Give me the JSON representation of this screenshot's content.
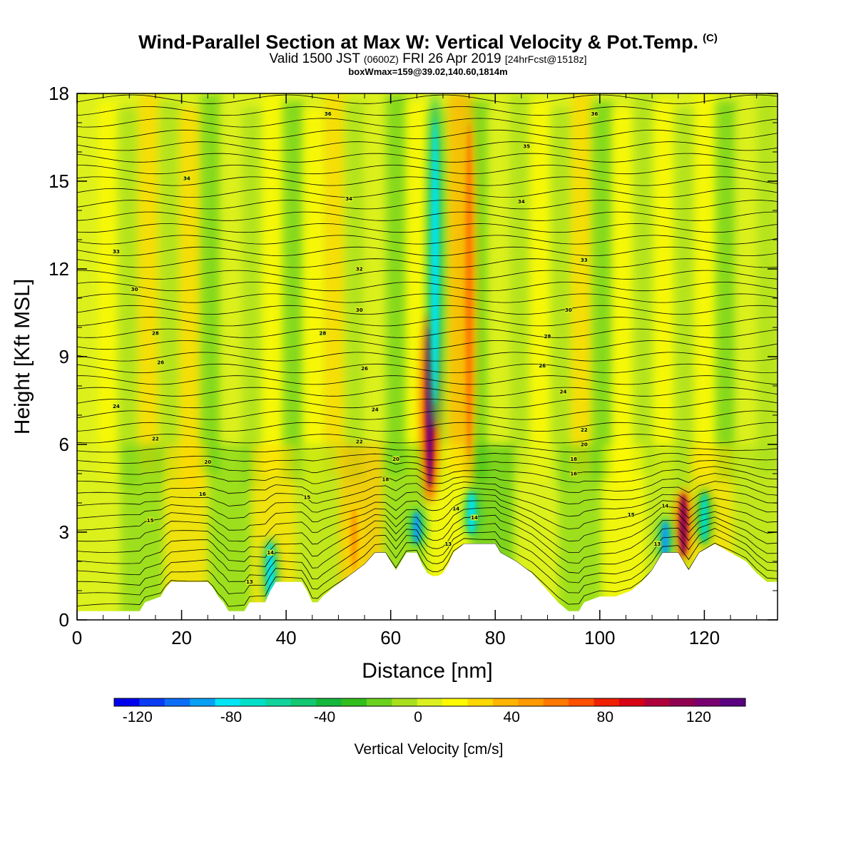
{
  "title": {
    "main": "Wind-Parallel Section at Max W: Vertical Velocity & Pot.Temp.",
    "copyright": "(C)",
    "valid_prefix": "Valid 1500 JST",
    "valid_utc": "(0600Z)",
    "valid_date": "FRI 26 Apr 2019",
    "forecast": "[24hrFcst@1518z]",
    "box_info": "boxWmax=159@39.02,140.60,1814m"
  },
  "chart_data": {
    "type": "heatmap",
    "xlabel": "Distance [nm]",
    "ylabel": "Height [Kft MSL]",
    "xlim": [
      0,
      134
    ],
    "ylim": [
      0,
      18
    ],
    "x_ticks": [
      0,
      20,
      40,
      60,
      80,
      100,
      120
    ],
    "y_ticks": [
      0,
      3,
      6,
      9,
      12,
      15,
      18
    ],
    "colorbar": {
      "title": "Vertical Velocity [cm/s]",
      "ticks": [
        -120,
        -80,
        -40,
        0,
        40,
        80,
        120
      ],
      "range": [
        -130,
        140
      ],
      "colors": [
        "#0000ee",
        "#0a3cf5",
        "#0c6ef7",
        "#08a0f5",
        "#00e6f5",
        "#00e0c8",
        "#10d49c",
        "#12c870",
        "#14b83c",
        "#32be1e",
        "#6ad21e",
        "#a8e01e",
        "#dcf01e",
        "#fffa00",
        "#ffd800",
        "#ffb400",
        "#ff9a00",
        "#ff7800",
        "#ff5000",
        "#f02000",
        "#d80014",
        "#b0003c",
        "#900050",
        "#780070",
        "#5a0080"
      ]
    },
    "terrain_profile": [
      [
        0,
        0.3
      ],
      [
        12,
        0.3
      ],
      [
        13,
        0.6
      ],
      [
        16,
        0.8
      ],
      [
        17,
        1.1
      ],
      [
        18,
        1.3
      ],
      [
        25,
        1.3
      ],
      [
        26,
        1.1
      ],
      [
        27,
        0.8
      ],
      [
        28,
        0.6
      ],
      [
        29,
        0.3
      ],
      [
        32,
        0.3
      ],
      [
        33,
        0.6
      ],
      [
        36,
        0.6
      ],
      [
        37,
        1.0
      ],
      [
        38,
        1.3
      ],
      [
        43,
        1.3
      ],
      [
        44,
        1.0
      ],
      [
        45,
        0.6
      ],
      [
        46,
        0.6
      ],
      [
        47,
        0.8
      ],
      [
        49,
        1.1
      ],
      [
        52,
        1.5
      ],
      [
        55,
        1.9
      ],
      [
        57,
        2.3
      ],
      [
        59,
        2.3
      ],
      [
        60,
        2.0
      ],
      [
        61,
        1.7
      ],
      [
        62,
        2.0
      ],
      [
        63,
        2.3
      ],
      [
        65,
        2.3
      ],
      [
        66,
        1.9
      ],
      [
        67,
        1.6
      ],
      [
        68,
        1.5
      ],
      [
        69,
        1.5
      ],
      [
        70,
        1.6
      ],
      [
        71,
        1.9
      ],
      [
        72,
        2.3
      ],
      [
        74,
        2.6
      ],
      [
        80,
        2.6
      ],
      [
        81,
        2.3
      ],
      [
        84,
        2.0
      ],
      [
        87,
        1.6
      ],
      [
        90,
        1.0
      ],
      [
        92,
        0.6
      ],
      [
        94,
        0.3
      ],
      [
        96,
        0.3
      ],
      [
        97,
        0.6
      ],
      [
        100,
        0.8
      ],
      [
        103,
        0.8
      ],
      [
        106,
        1.0
      ],
      [
        108,
        1.3
      ],
      [
        110,
        1.7
      ],
      [
        111,
        2.0
      ],
      [
        112,
        2.3
      ],
      [
        115,
        2.3
      ],
      [
        116,
        2.0
      ],
      [
        117,
        1.7
      ],
      [
        118,
        2.0
      ],
      [
        119,
        2.3
      ],
      [
        122,
        2.6
      ],
      [
        125,
        2.3
      ],
      [
        128,
        2.0
      ],
      [
        130,
        1.6
      ],
      [
        132,
        1.3
      ],
      [
        134,
        1.3
      ]
    ],
    "velocity_features": [
      {
        "x": 67.5,
        "z_min": 4.0,
        "z_max": 10.5,
        "w": 125
      },
      {
        "x": 75.0,
        "z_min": 4.5,
        "z_max": 18.0,
        "w": 60
      },
      {
        "x": 68.5,
        "z_min": 6.5,
        "z_max": 18.0,
        "w": -80
      },
      {
        "x": 53.0,
        "z_min": 1.5,
        "z_max": 4.0,
        "w": 45
      },
      {
        "x": 37.0,
        "z_min": 0.5,
        "z_max": 2.8,
        "w": -80
      },
      {
        "x": 75.5,
        "z_min": 2.8,
        "z_max": 4.5,
        "w": -80
      },
      {
        "x": 116.0,
        "z_min": 2.0,
        "z_max": 4.5,
        "w": 110
      },
      {
        "x": 112.5,
        "z_min": 2.0,
        "z_max": 3.5,
        "w": -90
      },
      {
        "x": 120.0,
        "z_min": 2.5,
        "z_max": 4.5,
        "w": -70
      },
      {
        "x": 65.0,
        "z_min": 2.5,
        "z_max": 3.8,
        "w": -90
      }
    ],
    "theta_labels": [
      {
        "x": 48,
        "z": 17.3,
        "text": "36"
      },
      {
        "x": 99,
        "z": 17.3,
        "text": "36"
      },
      {
        "x": 86,
        "z": 16.2,
        "text": "35"
      },
      {
        "x": 21,
        "z": 15.1,
        "text": "34"
      },
      {
        "x": 52,
        "z": 14.4,
        "text": "34"
      },
      {
        "x": 85,
        "z": 14.3,
        "text": "34"
      },
      {
        "x": 7.5,
        "z": 12.6,
        "text": "33"
      },
      {
        "x": 54,
        "z": 12.0,
        "text": "32"
      },
      {
        "x": 97,
        "z": 12.3,
        "text": "33"
      },
      {
        "x": 11,
        "z": 11.3,
        "text": "30"
      },
      {
        "x": 54,
        "z": 10.6,
        "text": "30"
      },
      {
        "x": 94,
        "z": 10.6,
        "text": "30"
      },
      {
        "x": 15,
        "z": 9.8,
        "text": "28"
      },
      {
        "x": 47,
        "z": 9.8,
        "text": "28"
      },
      {
        "x": 90,
        "z": 9.7,
        "text": "28"
      },
      {
        "x": 16,
        "z": 8.8,
        "text": "26"
      },
      {
        "x": 55,
        "z": 8.6,
        "text": "26"
      },
      {
        "x": 89,
        "z": 8.7,
        "text": "26"
      },
      {
        "x": 7.5,
        "z": 7.3,
        "text": "24"
      },
      {
        "x": 57,
        "z": 7.2,
        "text": "24"
      },
      {
        "x": 93,
        "z": 7.8,
        "text": "24"
      },
      {
        "x": 15,
        "z": 6.2,
        "text": "22"
      },
      {
        "x": 54,
        "z": 6.1,
        "text": "22"
      },
      {
        "x": 97,
        "z": 6.5,
        "text": "22"
      },
      {
        "x": 25,
        "z": 5.4,
        "text": "20"
      },
      {
        "x": 61,
        "z": 5.5,
        "text": "20"
      },
      {
        "x": 97,
        "z": 6.0,
        "text": "20"
      },
      {
        "x": 59,
        "z": 4.8,
        "text": "18"
      },
      {
        "x": 95,
        "z": 5.5,
        "text": "18"
      },
      {
        "x": 24,
        "z": 4.3,
        "text": "16"
      },
      {
        "x": 95,
        "z": 5.0,
        "text": "16"
      },
      {
        "x": 44,
        "z": 4.2,
        "text": "15"
      },
      {
        "x": 14,
        "z": 3.4,
        "text": "15"
      },
      {
        "x": 106,
        "z": 3.6,
        "text": "15"
      },
      {
        "x": 72.5,
        "z": 3.8,
        "text": "14"
      },
      {
        "x": 76,
        "z": 3.5,
        "text": "14"
      },
      {
        "x": 112.5,
        "z": 3.9,
        "text": "14"
      },
      {
        "x": 37,
        "z": 2.3,
        "text": "14"
      },
      {
        "x": 71,
        "z": 2.6,
        "text": "13"
      },
      {
        "x": 111,
        "z": 2.6,
        "text": "13"
      },
      {
        "x": 33,
        "z": 1.3,
        "text": "13"
      }
    ]
  }
}
